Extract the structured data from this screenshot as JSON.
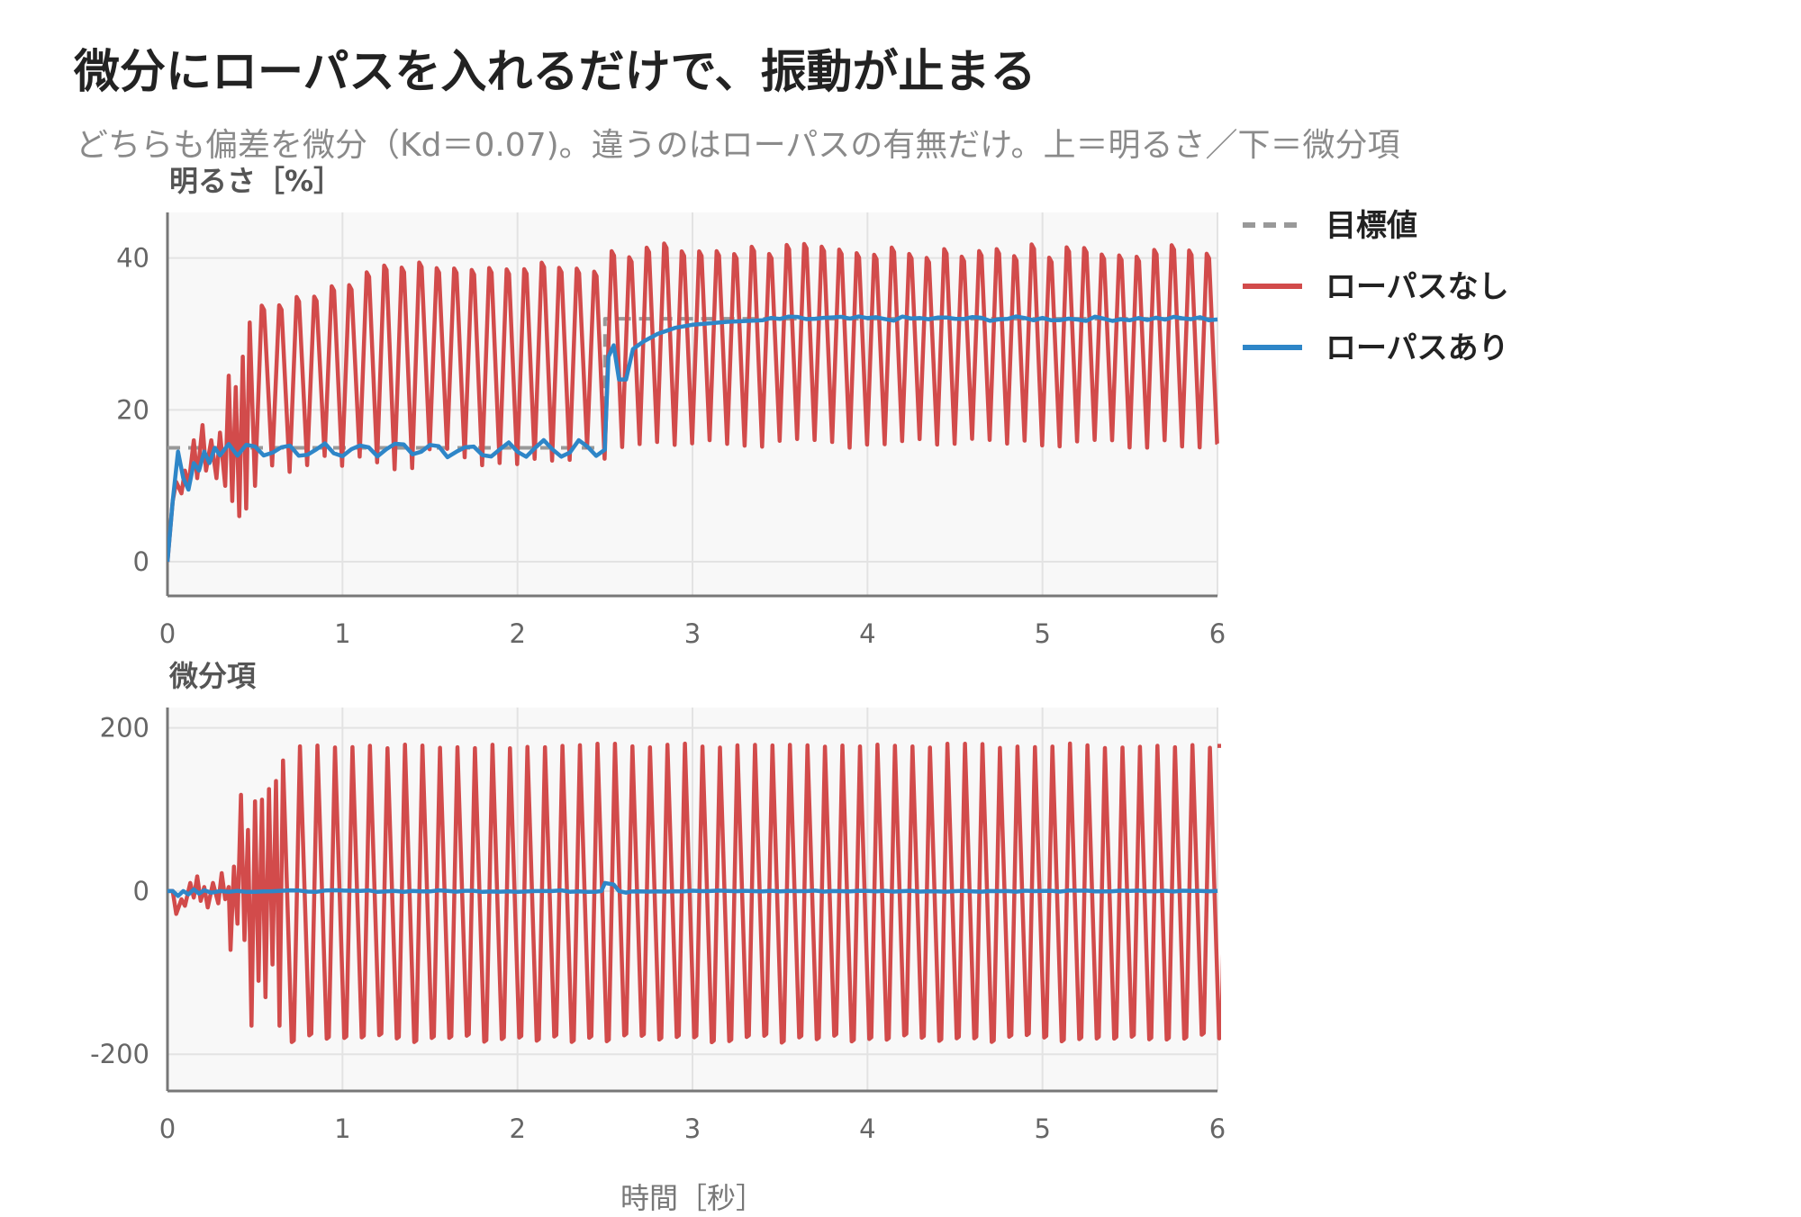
{
  "title": "微分にローパスを入れるだけで、振動が止まる",
  "subtitle": "どちらも偏差を微分（Kd＝0.07)。違うのはローパスの有無だけ。上＝明るさ／下＝微分項",
  "chart_data": [
    {
      "type": "line",
      "ylabel": "明るさ［%］",
      "xlabel": "",
      "xlim": [
        0,
        6
      ],
      "ylim": [
        -4.5,
        46
      ],
      "xticks": [
        "0",
        "1",
        "2",
        "3",
        "4",
        "5",
        "6"
      ],
      "yticks": [
        "0",
        "20",
        "40"
      ],
      "grid": true,
      "legend_position": "right",
      "series": [
        {
          "name": "目標値",
          "color": "#999999",
          "style": "dashed",
          "x": [
            0,
            2.5,
            2.5,
            6
          ],
          "y": [
            15,
            15,
            32,
            32
          ]
        },
        {
          "name": "ローパスなし",
          "color": "#d24b4b",
          "style": "solid",
          "x": [
            0,
            0.05,
            0.1,
            0.15,
            0.2,
            0.25,
            0.3,
            0.35,
            0.4,
            0.45,
            0.5,
            0.55,
            0.6,
            0.65,
            0.7,
            0.75,
            0.8,
            0.9,
            1.0,
            1.5,
            2.0,
            2.45,
            2.55,
            3.0,
            4.0,
            5.0,
            6.0
          ],
          "y": [
            0,
            10,
            12,
            16,
            12,
            17,
            14,
            24,
            8,
            27,
            8,
            32,
            10,
            34,
            12,
            37,
            11,
            38,
            13,
            39,
            14,
            39,
            15,
            40,
            16,
            41,
            15
          ],
          "oscillation": {
            "period_s": 0.1,
            "mean": [
              15,
              25
            ],
            "amplitude": 12,
            "after_step_low": 15.5,
            "after_step_high": 41
          }
        },
        {
          "name": "ローパスあり",
          "color": "#2e86c8",
          "style": "solid",
          "x": [
            0,
            0.05,
            0.1,
            0.15,
            0.2,
            0.3,
            0.4,
            0.5,
            1.0,
            1.5,
            2.0,
            2.5,
            2.55,
            2.6,
            2.7,
            2.8,
            3.0,
            3.2,
            3.5,
            4.0,
            5.0,
            6.0
          ],
          "y": [
            0,
            13,
            10,
            14,
            11,
            14,
            15,
            15.5,
            15,
            15,
            15,
            15.5,
            27,
            24,
            29,
            30,
            31,
            31.5,
            32,
            32,
            32,
            32
          ]
        }
      ]
    },
    {
      "type": "line",
      "ylabel": "微分項",
      "xlabel": "時間［秒］",
      "xlim": [
        0,
        6
      ],
      "ylim": [
        -245,
        225
      ],
      "xticks": [
        "0",
        "1",
        "2",
        "3",
        "4",
        "5",
        "6"
      ],
      "yticks": [
        "-200",
        "0",
        "200"
      ],
      "grid": true,
      "series": [
        {
          "name": "ローパスなし",
          "color": "#d24b4b",
          "x": [
            0,
            0.05,
            0.1,
            0.15,
            0.2,
            0.3,
            0.35,
            0.4,
            0.45,
            0.5,
            0.55,
            0.6,
            0.7,
            0.75,
            0.8,
            1.0,
            6.0
          ],
          "y": [
            0,
            -25,
            10,
            -15,
            12,
            25,
            -70,
            120,
            -130,
            135,
            -130,
            150,
            -180,
            175,
            -185,
            180,
            180
          ],
          "oscillation": {
            "period_s": 0.1,
            "amplitude": 180
          }
        },
        {
          "name": "ローパスあり",
          "color": "#2e86c8",
          "x": [
            0,
            0.05,
            0.1,
            0.2,
            0.3,
            2.45,
            2.5,
            2.55,
            2.6,
            6.0
          ],
          "y": [
            0,
            -5,
            3,
            -3,
            0,
            0,
            10,
            8,
            0,
            0
          ]
        }
      ]
    }
  ]
}
